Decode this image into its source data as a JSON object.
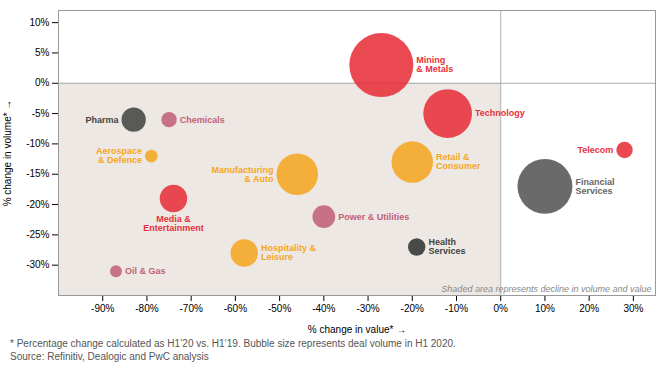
{
  "chart_data": {
    "type": "scatter",
    "points": [
      {
        "label": "Mining\n& Metals",
        "x": -27,
        "y": 3,
        "size": 3800,
        "color": "#E8303A",
        "label_color": "#E8303A"
      },
      {
        "label": "Technology",
        "x": -12,
        "y": -5,
        "size": 2200,
        "color": "#E8303A",
        "label_color": "#E8303A"
      },
      {
        "label": "Retail &\nConsumer",
        "x": -20,
        "y": -13,
        "size": 1600,
        "color": "#F5A623",
        "label_color": "#F5A623"
      },
      {
        "label": "Manufacturing\n& Auto",
        "x": -46,
        "y": -15,
        "size": 1600,
        "color": "#F5A623",
        "label_color": "#F5A623"
      },
      {
        "label": "Power & Utilities",
        "x": -40,
        "y": -22,
        "size": 480,
        "color": "#C2607A",
        "label_color": "#C2607A"
      },
      {
        "label": "Hospitality &\nLeisure",
        "x": -58,
        "y": -28,
        "size": 700,
        "color": "#F5A623",
        "label_color": "#F5A623"
      },
      {
        "label": "Financial\nServices",
        "x": 10,
        "y": -17,
        "size": 2800,
        "color": "#555555",
        "label_color": "#666666"
      },
      {
        "label": "Health\nServices",
        "x": -19,
        "y": -27,
        "size": 280,
        "color": "#333333",
        "label_color": "#444444"
      },
      {
        "label": "Telecom",
        "x": 28,
        "y": -11,
        "size": 250,
        "color": "#E8303A",
        "label_color": "#E8303A"
      },
      {
        "label": "Media &\nEntertainment",
        "x": -74,
        "y": -19,
        "size": 700,
        "color": "#E8303A",
        "label_color": "#E8303A"
      },
      {
        "label": "Pharma",
        "x": -83,
        "y": -6,
        "size": 550,
        "color": "#444444",
        "label_color": "#444444"
      },
      {
        "label": "Chemicals",
        "x": -75,
        "y": -6,
        "size": 220,
        "color": "#C2607A",
        "label_color": "#C2607A"
      },
      {
        "label": "Aerospace\n& Defence",
        "x": -79,
        "y": -12,
        "size": 150,
        "color": "#F5A623",
        "label_color": "#F5A623"
      },
      {
        "label": "Oil & Gas",
        "x": -87,
        "y": -31,
        "size": 130,
        "color": "#C2607A",
        "label_color": "#C2607A"
      }
    ],
    "xlim": [
      -100,
      35
    ],
    "ylim": [
      -35,
      12
    ],
    "xticks": [
      {
        "value": -90,
        "label": "-90%"
      },
      {
        "value": -80,
        "label": "-80%"
      },
      {
        "value": -70,
        "label": "-70%"
      },
      {
        "value": -60,
        "label": "-60%"
      },
      {
        "value": -50,
        "label": "-50%"
      },
      {
        "value": -40,
        "label": "-40%"
      },
      {
        "value": -30,
        "label": "-30%"
      },
      {
        "value": -20,
        "label": "-20%"
      },
      {
        "value": -10,
        "label": "-10%"
      },
      {
        "value": 0,
        "label": "0%"
      },
      {
        "value": 10,
        "label": "10%"
      },
      {
        "value": 20,
        "label": "20%"
      },
      {
        "value": 30,
        "label": "30%"
      }
    ],
    "yticks": [
      {
        "value": -30,
        "label": "-30%"
      },
      {
        "value": -25,
        "label": "-25%"
      },
      {
        "value": -20,
        "label": "-20%"
      },
      {
        "value": -15,
        "label": "-15%"
      },
      {
        "value": -10,
        "label": "-10%"
      },
      {
        "value": -5,
        "label": "-5%"
      },
      {
        "value": 0,
        "label": "0%"
      },
      {
        "value": 5,
        "label": "5%"
      },
      {
        "value": 10,
        "label": "10%"
      }
    ],
    "xlabel": "% change in value*",
    "ylabel": "% change in volume*",
    "shaded_region": {
      "x": [
        -100,
        0
      ],
      "y": [
        -35,
        0
      ],
      "color": "#EDE8E3",
      "note": "Shaded area represents decline in volume and value"
    },
    "rules": {
      "x": [
        0
      ],
      "y": [
        0
      ],
      "color": "#999999"
    },
    "footnotes": [
      "* Percentage change calculated as H1’20 vs. H1’19. Bubble size represents deal volume in H1 2020.",
      "Source: Refinitiv, Dealogic and PwC analysis"
    ],
    "grid": false
  }
}
